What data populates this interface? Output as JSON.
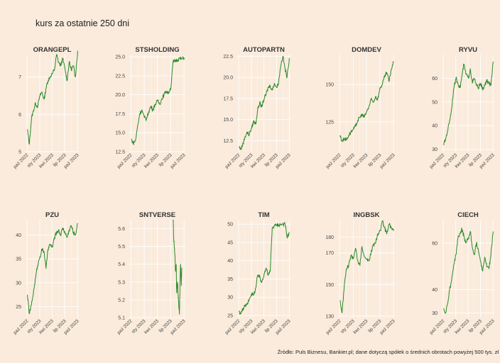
{
  "title": "kurs za ostatnie 250 dni",
  "source": "Źródło: Puls Biznesu, Bankier.pl; dane dotyczą spółek o średnich obrotach powyżej 500 tys. zł",
  "colors": {
    "background": "#faebdc",
    "line": "#2a8a2a"
  },
  "chart_data": [
    {
      "type": "line",
      "title": "ORANGEPL",
      "ylim": [
        5,
        7.6
      ],
      "yticks": [
        5,
        6,
        7
      ],
      "xticks": [
        "paź 2022",
        "sty 2023",
        "kwi 2023",
        "lip 2023",
        "paź 2023"
      ],
      "series": [
        {
          "x": [
            "2022-10-03",
            "2022-10-17",
            "2022-11-02",
            "2022-11-16",
            "2022-12-01",
            "2022-12-15",
            "2023-01-02",
            "2023-01-16",
            "2023-02-01",
            "2023-02-15",
            "2023-03-01",
            "2023-03-15",
            "2023-04-03",
            "2023-04-17",
            "2023-05-02",
            "2023-05-16",
            "2023-06-01",
            "2023-06-15",
            "2023-07-03",
            "2023-07-17",
            "2023-08-01",
            "2023-08-16",
            "2023-09-01",
            "2023-09-15",
            "2023-10-02"
          ],
          "values": [
            5.6,
            5.2,
            5.9,
            6.1,
            6.3,
            6.2,
            6.5,
            6.6,
            6.4,
            6.7,
            6.9,
            7.0,
            7.1,
            7.2,
            7.6,
            7.4,
            7.3,
            7.5,
            7.2,
            6.9,
            7.4,
            7.2,
            7.3,
            7.0,
            7.7
          ]
        }
      ]
    },
    {
      "type": "line",
      "title": "STSHOLDING",
      "ylim": [
        12.5,
        25.3
      ],
      "yticks": [
        12.5,
        15.0,
        17.5,
        20.0,
        22.5,
        25.0
      ],
      "xticks": [
        "paź 2022",
        "sty 2023",
        "kwi 2023",
        "lip 2023",
        "paź 2023"
      ],
      "series": [
        {
          "x": [
            "2022-10-03",
            "2022-10-17",
            "2022-11-02",
            "2022-11-16",
            "2022-12-01",
            "2022-12-15",
            "2023-01-02",
            "2023-01-16",
            "2023-02-01",
            "2023-02-15",
            "2023-03-01",
            "2023-03-15",
            "2023-04-03",
            "2023-04-17",
            "2023-05-02",
            "2023-05-16",
            "2023-06-01",
            "2023-06-15",
            "2023-07-03",
            "2023-07-17",
            "2023-08-01",
            "2023-08-16",
            "2023-09-01",
            "2023-09-15",
            "2023-10-02"
          ],
          "values": [
            14.2,
            13.6,
            14.0,
            15.8,
            17.5,
            18.0,
            17.0,
            16.8,
            17.8,
            18.5,
            18.0,
            18.7,
            19.2,
            18.8,
            19.5,
            20.0,
            20.5,
            20.2,
            21.0,
            24.3,
            24.5,
            24.6,
            24.8,
            24.7,
            24.9
          ]
        }
      ]
    },
    {
      "type": "line",
      "title": "AUTOPARTN",
      "ylim": [
        11.2,
        22.7
      ],
      "yticks": [
        12.5,
        15.0,
        17.5,
        20.0,
        22.5
      ],
      "xticks": [
        "paź 2022",
        "sty 2023",
        "kwi 2023",
        "lip 2023",
        "paź 2023"
      ],
      "series": [
        {
          "x": [
            "2022-10-03",
            "2022-10-17",
            "2022-11-02",
            "2022-11-16",
            "2022-12-01",
            "2022-12-15",
            "2023-01-02",
            "2023-01-16",
            "2023-02-01",
            "2023-02-15",
            "2023-03-01",
            "2023-03-15",
            "2023-04-03",
            "2023-04-17",
            "2023-05-02",
            "2023-05-16",
            "2023-06-01",
            "2023-06-15",
            "2023-07-03",
            "2023-07-17",
            "2023-08-01",
            "2023-08-16",
            "2023-09-01",
            "2023-09-15",
            "2023-10-02"
          ],
          "values": [
            11.8,
            11.5,
            12.2,
            13.0,
            13.5,
            13.2,
            14.0,
            14.8,
            14.5,
            16.2,
            17.0,
            16.5,
            17.5,
            18.0,
            18.8,
            19.0,
            18.5,
            19.3,
            18.8,
            19.5,
            21.5,
            22.5,
            21.0,
            20.0,
            22.3
          ]
        }
      ]
    },
    {
      "type": "line",
      "title": "DOMDEV",
      "ylim": [
        105,
        170
      ],
      "yticks": [
        125,
        150
      ],
      "xticks": [
        "paź 2022",
        "sty 2023",
        "kwi 2023",
        "lip 2023",
        "paź 2023"
      ],
      "series": [
        {
          "x": [
            "2022-10-03",
            "2022-10-17",
            "2022-11-02",
            "2022-11-16",
            "2022-12-01",
            "2022-12-15",
            "2023-01-02",
            "2023-01-16",
            "2023-02-01",
            "2023-02-15",
            "2023-03-01",
            "2023-03-15",
            "2023-04-03",
            "2023-04-17",
            "2023-05-02",
            "2023-05-16",
            "2023-06-01",
            "2023-06-15",
            "2023-07-03",
            "2023-07-17",
            "2023-08-01",
            "2023-08-16",
            "2023-09-01",
            "2023-09-15",
            "2023-10-02"
          ],
          "values": [
            116,
            112,
            114,
            113,
            116,
            118,
            120,
            122,
            126,
            128,
            130,
            128,
            132,
            135,
            140,
            138,
            142,
            140,
            148,
            150,
            155,
            158,
            152,
            160,
            165
          ]
        }
      ]
    },
    {
      "type": "line",
      "title": "RYVU",
      "ylim": [
        29,
        70
      ],
      "yticks": [
        30,
        40,
        50,
        60
      ],
      "xticks": [
        "paź 2022",
        "sty 2023",
        "kwi 2023",
        "lip 2023",
        "paź 2023"
      ],
      "series": [
        {
          "x": [
            "2022-10-03",
            "2022-10-17",
            "2022-11-02",
            "2022-11-16",
            "2022-12-01",
            "2022-12-15",
            "2023-01-02",
            "2023-01-16",
            "2023-02-01",
            "2023-02-15",
            "2023-03-01",
            "2023-03-15",
            "2023-04-03",
            "2023-04-17",
            "2023-05-02",
            "2023-05-16",
            "2023-06-01",
            "2023-06-15",
            "2023-07-03",
            "2023-07-17",
            "2023-08-01",
            "2023-08-16",
            "2023-09-01",
            "2023-09-15",
            "2023-10-02"
          ],
          "values": [
            32,
            34,
            38,
            42,
            47,
            55,
            60,
            58,
            56,
            61,
            66,
            62,
            60,
            64,
            58,
            60,
            57,
            56,
            58,
            55,
            57,
            59,
            58,
            57,
            67
          ]
        }
      ]
    },
    {
      "type": "line",
      "title": "PZU",
      "ylim": [
        22.7,
        43.2
      ],
      "yticks": [
        25,
        30,
        35,
        40
      ],
      "xticks": [
        "paź 2022",
        "sty 2023",
        "kwi 2023",
        "lip 2023",
        "paź 2023"
      ],
      "series": [
        {
          "x": [
            "2022-10-03",
            "2022-10-17",
            "2022-11-02",
            "2022-11-16",
            "2022-12-01",
            "2022-12-15",
            "2023-01-02",
            "2023-01-16",
            "2023-02-01",
            "2023-02-15",
            "2023-03-01",
            "2023-03-15",
            "2023-04-03",
            "2023-04-17",
            "2023-05-02",
            "2023-05-16",
            "2023-06-01",
            "2023-06-15",
            "2023-07-03",
            "2023-07-17",
            "2023-08-01",
            "2023-08-16",
            "2023-09-01",
            "2023-09-15",
            "2023-10-02"
          ],
          "values": [
            27.5,
            23.5,
            25.5,
            28.0,
            31.0,
            33.5,
            35.5,
            37.0,
            36.5,
            33.0,
            37.0,
            38.0,
            37.5,
            39.5,
            40.5,
            41.0,
            40.0,
            41.5,
            40.5,
            39.5,
            41.0,
            42.0,
            40.5,
            40.0,
            42.5
          ]
        }
      ]
    },
    {
      "type": "line",
      "title": "SNTVERSE",
      "ylim": [
        5.1,
        5.65
      ],
      "yticks": [
        5.1,
        5.2,
        5.3,
        5.4,
        5.5,
        5.6
      ],
      "xticks": [
        "paź 2022",
        "sty 2023",
        "kwi 2023",
        "lip 2023",
        "paź 2023"
      ],
      "series": [
        {
          "x": [
            "2023-07-18",
            "2023-07-21",
            "2023-07-26",
            "2023-07-31",
            "2023-08-03",
            "2023-08-08",
            "2023-08-11",
            "2023-08-17",
            "2023-08-22",
            "2023-08-25",
            "2023-08-30",
            "2023-09-04",
            "2023-09-07",
            "2023-09-12",
            "2023-09-15"
          ],
          "values": [
            5.68,
            5.55,
            5.5,
            5.45,
            5.36,
            5.4,
            5.24,
            5.3,
            5.22,
            5.18,
            5.12,
            5.32,
            5.4,
            5.28,
            5.38
          ]
        }
      ]
    },
    {
      "type": "line",
      "title": "TIM",
      "ylim": [
        24.4,
        51.2
      ],
      "yticks": [
        25,
        30,
        35,
        40,
        45,
        50
      ],
      "xticks": [
        "paź 2022",
        "sty 2023",
        "kwi 2023",
        "lip 2023",
        "paź 2023"
      ],
      "series": [
        {
          "x": [
            "2022-10-03",
            "2022-10-17",
            "2022-11-02",
            "2022-11-16",
            "2022-12-01",
            "2022-12-15",
            "2023-01-02",
            "2023-01-16",
            "2023-02-01",
            "2023-02-15",
            "2023-03-01",
            "2023-03-15",
            "2023-04-03",
            "2023-04-17",
            "2023-05-02",
            "2023-05-16",
            "2023-05-31",
            "2023-06-15",
            "2023-07-03",
            "2023-07-17",
            "2023-08-01",
            "2023-08-16",
            "2023-09-01",
            "2023-09-15",
            "2023-10-02"
          ],
          "values": [
            26.0,
            25.5,
            27.0,
            27.5,
            28.0,
            29.5,
            31.0,
            30.5,
            32.5,
            36.0,
            35.5,
            34.0,
            36.5,
            38.0,
            36.0,
            37.0,
            49.0,
            49.5,
            49.8,
            49.8,
            49.9,
            50.0,
            50.0,
            46.5,
            47.5
          ]
        }
      ]
    },
    {
      "type": "line",
      "title": "INGBSK",
      "ylim": [
        129,
        191
      ],
      "yticks": [
        130,
        150,
        170,
        180
      ],
      "xticks": [
        "paź 2022",
        "sty 2023",
        "kwi 2023",
        "lip 2023",
        "paź 2023"
      ],
      "series": [
        {
          "x": [
            "2022-10-03",
            "2022-10-17",
            "2022-11-02",
            "2022-11-16",
            "2022-12-01",
            "2022-12-15",
            "2023-01-02",
            "2023-01-16",
            "2023-02-01",
            "2023-02-15",
            "2023-03-01",
            "2023-03-15",
            "2023-04-03",
            "2023-04-17",
            "2023-05-02",
            "2023-05-16",
            "2023-06-01",
            "2023-06-15",
            "2023-07-03",
            "2023-07-17",
            "2023-08-01",
            "2023-08-16",
            "2023-09-01",
            "2023-09-15",
            "2023-10-02"
          ],
          "values": [
            140,
            132,
            150,
            160,
            162,
            168,
            167,
            173,
            165,
            162,
            174,
            168,
            166,
            165,
            170,
            175,
            176,
            182,
            184,
            190,
            186,
            182,
            188,
            186,
            184
          ]
        }
      ]
    },
    {
      "type": "line",
      "title": "CIECH",
      "ylim": [
        28,
        70
      ],
      "yticks": [
        30,
        40,
        60
      ],
      "xticks": [
        "paź 2022",
        "sty 2023",
        "kwi 2023",
        "lip 2023",
        "paź 2023"
      ],
      "series": [
        {
          "x": [
            "2022-10-03",
            "2022-10-17",
            "2022-11-02",
            "2022-11-16",
            "2022-12-01",
            "2022-12-15",
            "2023-01-02",
            "2023-01-16",
            "2023-02-01",
            "2023-02-15",
            "2023-03-01",
            "2023-03-15",
            "2023-04-03",
            "2023-04-17",
            "2023-05-02",
            "2023-05-16",
            "2023-06-01",
            "2023-06-15",
            "2023-07-03",
            "2023-07-17",
            "2023-08-01",
            "2023-08-16",
            "2023-09-01",
            "2023-09-15",
            "2023-10-02"
          ],
          "values": [
            32,
            30,
            34,
            40,
            44,
            50,
            55,
            62,
            64,
            66,
            63,
            60,
            62,
            65,
            58,
            55,
            60,
            57,
            52,
            48,
            54,
            50,
            49,
            55,
            65
          ]
        }
      ]
    }
  ]
}
